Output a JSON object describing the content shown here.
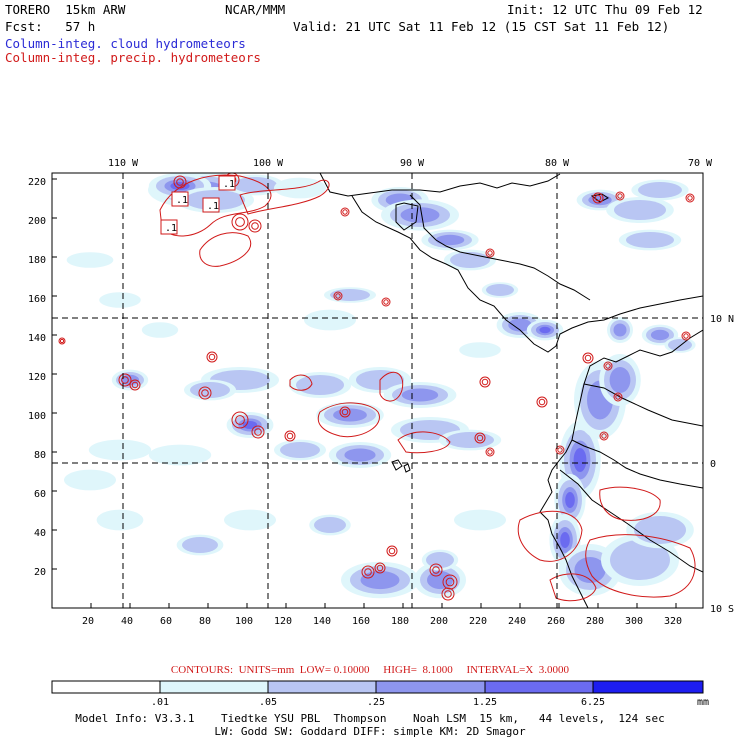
{
  "header": {
    "model": "TORERO  15km ARW",
    "org": "NCAR/MMM",
    "init": "Init: 12 UTC Thu 09 Feb 12",
    "fcst": "Fcst:   57 h",
    "valid": "Valid: 21 UTC Sat 11 Feb 12 (15 CST Sat 11 Feb 12)",
    "field_cloud": "Column-integ. cloud hydrometeors",
    "field_precip": "Column-integ. precip. hydrometeors"
  },
  "colors": {
    "cloud_field": "#2b2bd6",
    "precip_field": "#d11a1a",
    "shade_1": "#dff6fb",
    "shade_2": "#b9c6f3",
    "shade_3": "#8e96ee",
    "shade_4": "#6b6bf0",
    "shade_5": "#1d1df0"
  },
  "map": {
    "lon_labels": [
      "110 W",
      "100 W",
      "90 W",
      "80 W",
      "70 W"
    ],
    "lat_labels": [
      "10 N",
      "0",
      "10 S"
    ],
    "y_ticks": [
      "220",
      "200",
      "180",
      "160",
      "140",
      "120",
      "100",
      "80",
      "60",
      "40",
      "20"
    ],
    "x_ticks": [
      "20",
      "40",
      "60",
      "80",
      "100",
      "120",
      "140",
      "160",
      "180",
      "200",
      "220",
      "240",
      "260",
      "280",
      "300",
      "320"
    ],
    "box_labels": [
      ".1",
      ".1",
      ".1",
      ".1"
    ]
  },
  "colorbar": {
    "labels": [
      ".01",
      ".05",
      ".25",
      "1.25",
      "6.25"
    ],
    "unit": "mm"
  },
  "contours": {
    "line": "CONTOURS:  UNITS=mm  LOW= 0.10000     HIGH=  8.1000     INTERVAL=X  3.0000"
  },
  "model_info": {
    "line1": "Model Info: V3.3.1    Tiedtke YSU PBL  Thompson    Noah LSM  15 km,   44 levels,  124 sec",
    "line2": "LW: Godd SW: Goddard DIFF: simple KM: 2D Smagor"
  }
}
